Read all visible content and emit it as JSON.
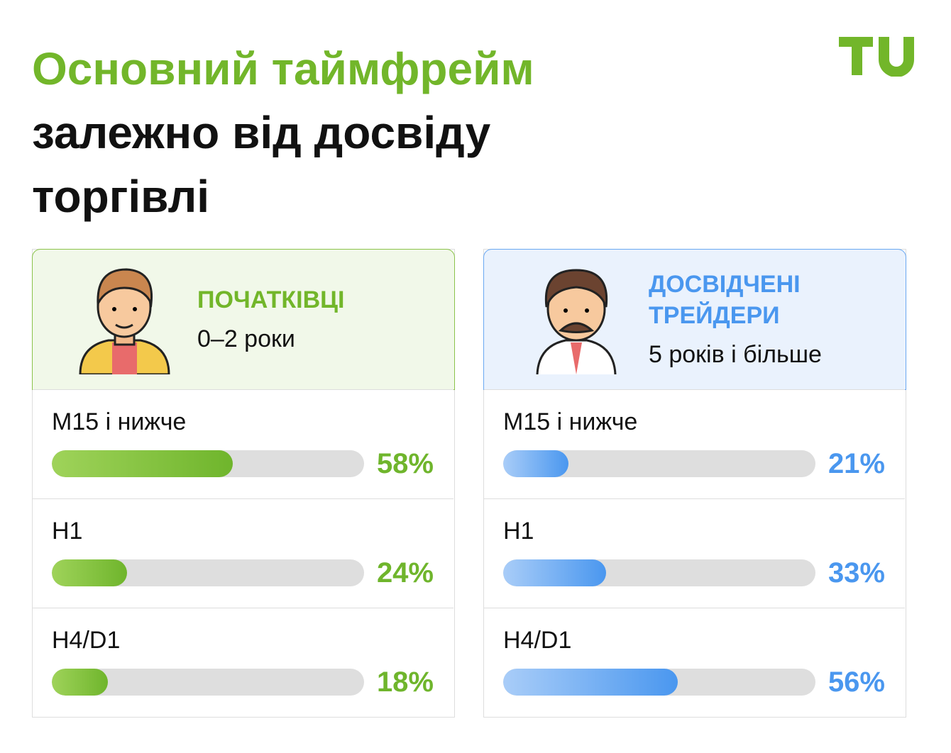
{
  "header": {
    "title_highlight": "Основний таймфрейм",
    "title": "залежно від досвіду торгівлі"
  },
  "chart_data": [
    {
      "type": "bar",
      "title": "ПОЧАТКІВЦІ",
      "subtitle": "0–2 роки",
      "categories": [
        "M15 і нижче",
        "H1",
        "H4/D1"
      ],
      "values": [
        58,
        24,
        18
      ],
      "value_labels": [
        "58%",
        "24%",
        "18%"
      ],
      "xlim": [
        0,
        100
      ],
      "color": "#6fb52c"
    },
    {
      "type": "bar",
      "title": "ДОСВІДЧЕНІ ТРЕЙДЕРИ",
      "subtitle": "5 років і більше",
      "categories": [
        "M15 і нижче",
        "H1",
        "H4/D1"
      ],
      "values": [
        21,
        33,
        56
      ],
      "value_labels": [
        "21%",
        "33%",
        "56%"
      ],
      "xlim": [
        0,
        100
      ],
      "color": "#4a97ef"
    }
  ]
}
